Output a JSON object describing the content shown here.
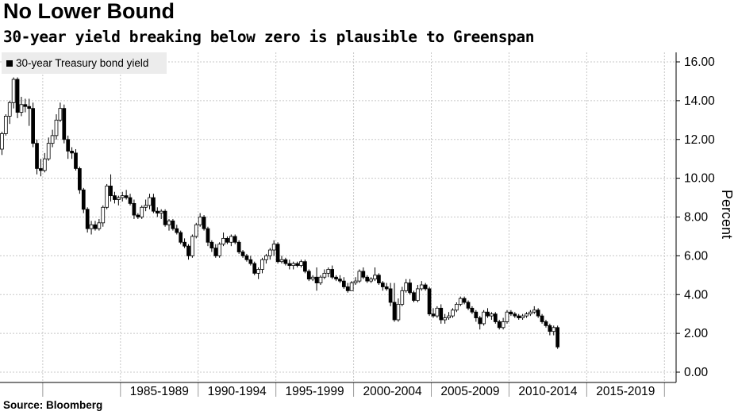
{
  "header": {
    "title": "No Lower Bound",
    "subtitle": "30-year yield breaking below zero is plausible to Greenspan"
  },
  "footer": {
    "source": "Source: Bloomberg"
  },
  "chart_data": {
    "type": "candlestick",
    "title": "No Lower Bound",
    "subtitle": "30-year yield breaking below zero is plausible to Greenspan",
    "ylabel": "Percent",
    "xlabel": "",
    "legend": {
      "entries": [
        "30-year Treasury bond yield"
      ],
      "placement": "top-left"
    },
    "colors": {
      "up": "#ffffff",
      "down": "#000000",
      "outline": "#000000",
      "grid": "#c8c8c8"
    },
    "grid": true,
    "y_axis": {
      "position": "right",
      "ylim": [
        0,
        16.5
      ],
      "ticks": [
        0,
        2,
        4,
        6,
        8,
        10,
        12,
        14,
        16
      ],
      "tick_labels": [
        "0.00",
        "2.00",
        "4.00",
        "6.00",
        "8.00",
        "10.00",
        "12.00",
        "14.00",
        "16.00"
      ]
    },
    "x_axis": {
      "xlim": [
        1977.25,
        2020.75
      ],
      "period_labels": [
        "1985-1989",
        "1990-1994",
        "1995-1999",
        "2000-2004",
        "2005-2009",
        "2010-2014",
        "2015-2019"
      ]
    },
    "quarterly_ohlc": {
      "start": "1977-Q2",
      "frequency": "quarterly",
      "columns": [
        "open",
        "high",
        "low",
        "close"
      ],
      "values": [
        [
          11.5,
          12.4,
          11.2,
          12.3
        ],
        [
          12.3,
          13.3,
          12.2,
          13.2
        ],
        [
          13.2,
          14.0,
          12.8,
          13.9
        ],
        [
          13.9,
          15.2,
          13.6,
          15.1
        ],
        [
          15.1,
          15.2,
          13.1,
          13.4
        ],
        [
          13.4,
          14.2,
          13.2,
          13.8
        ],
        [
          13.8,
          14.1,
          13.4,
          13.7
        ],
        [
          13.7,
          14.1,
          12.7,
          13.6
        ],
        [
          13.6,
          13.9,
          11.6,
          11.8
        ],
        [
          11.8,
          12.0,
          10.2,
          10.5
        ],
        [
          10.5,
          11.0,
          10.1,
          10.4
        ],
        [
          10.4,
          11.3,
          10.3,
          11.0
        ],
        [
          11.0,
          12.1,
          10.9,
          11.8
        ],
        [
          11.8,
          12.5,
          11.6,
          12.2
        ],
        [
          12.2,
          13.3,
          12.0,
          13.0
        ],
        [
          13.0,
          13.9,
          12.9,
          13.6
        ],
        [
          13.6,
          13.8,
          11.8,
          12.0
        ],
        [
          12.0,
          12.2,
          11.0,
          11.4
        ],
        [
          11.4,
          11.6,
          11.0,
          11.3
        ],
        [
          11.3,
          11.5,
          10.4,
          10.5
        ],
        [
          10.5,
          10.6,
          9.2,
          9.4
        ],
        [
          9.4,
          9.5,
          8.2,
          8.4
        ],
        [
          8.4,
          8.5,
          7.2,
          7.4
        ],
        [
          7.4,
          7.8,
          7.1,
          7.6
        ],
        [
          7.6,
          7.8,
          7.3,
          7.4
        ],
        [
          7.4,
          7.9,
          7.3,
          7.7
        ],
        [
          7.7,
          8.6,
          7.5,
          8.5
        ],
        [
          8.5,
          9.7,
          8.4,
          9.6
        ],
        [
          9.6,
          10.2,
          8.8,
          9.1
        ],
        [
          9.1,
          9.3,
          8.7,
          8.9
        ],
        [
          8.9,
          9.1,
          8.6,
          9.0
        ],
        [
          9.0,
          9.3,
          8.8,
          9.1
        ],
        [
          9.1,
          9.4,
          8.9,
          9.0
        ],
        [
          9.0,
          9.2,
          8.6,
          8.7
        ],
        [
          8.7,
          8.9,
          7.9,
          8.1
        ],
        [
          8.1,
          8.2,
          7.9,
          8.0
        ],
        [
          8.0,
          8.6,
          7.9,
          8.5
        ],
        [
          8.5,
          8.9,
          8.3,
          8.6
        ],
        [
          8.6,
          9.2,
          8.4,
          9.0
        ],
        [
          9.0,
          9.2,
          8.2,
          8.3
        ],
        [
          8.3,
          8.5,
          8.0,
          8.2
        ],
        [
          8.2,
          8.4,
          7.9,
          8.3
        ],
        [
          8.3,
          8.4,
          7.5,
          7.6
        ],
        [
          7.6,
          7.9,
          7.3,
          7.8
        ],
        [
          7.8,
          7.9,
          7.3,
          7.4
        ],
        [
          7.4,
          7.6,
          7.1,
          7.2
        ],
        [
          7.2,
          7.3,
          6.6,
          6.7
        ],
        [
          6.7,
          6.9,
          6.4,
          6.5
        ],
        [
          6.5,
          6.6,
          5.8,
          6.0
        ],
        [
          6.0,
          7.1,
          5.9,
          7.0
        ],
        [
          7.0,
          7.7,
          6.9,
          7.6
        ],
        [
          7.6,
          8.2,
          7.5,
          8.0
        ],
        [
          8.0,
          8.1,
          7.3,
          7.4
        ],
        [
          7.4,
          7.5,
          6.5,
          6.7
        ],
        [
          6.7,
          6.8,
          6.2,
          6.4
        ],
        [
          6.4,
          6.6,
          5.9,
          6.0
        ],
        [
          6.0,
          6.7,
          5.9,
          6.6
        ],
        [
          6.6,
          7.2,
          6.5,
          6.9
        ],
        [
          6.9,
          7.0,
          6.6,
          6.7
        ],
        [
          6.7,
          7.1,
          6.5,
          7.0
        ],
        [
          7.0,
          7.1,
          6.6,
          6.7
        ],
        [
          6.7,
          6.8,
          6.1,
          6.2
        ],
        [
          6.2,
          6.3,
          5.9,
          6.0
        ],
        [
          6.0,
          6.1,
          5.7,
          5.8
        ],
        [
          5.8,
          6.0,
          5.5,
          5.6
        ],
        [
          5.6,
          5.7,
          5.0,
          5.1
        ],
        [
          5.1,
          5.4,
          4.8,
          5.3
        ],
        [
          5.3,
          5.9,
          5.1,
          5.8
        ],
        [
          5.8,
          6.1,
          5.6,
          6.0
        ],
        [
          6.0,
          6.4,
          5.8,
          6.3
        ],
        [
          6.3,
          6.8,
          6.0,
          6.6
        ],
        [
          6.6,
          6.7,
          5.6,
          5.7
        ],
        [
          5.7,
          6.0,
          5.6,
          5.8
        ],
        [
          5.8,
          5.9,
          5.5,
          5.6
        ],
        [
          5.6,
          5.8,
          5.3,
          5.5
        ],
        [
          5.5,
          5.7,
          5.3,
          5.6
        ],
        [
          5.6,
          5.7,
          5.4,
          5.5
        ],
        [
          5.5,
          5.8,
          5.4,
          5.7
        ],
        [
          5.7,
          5.8,
          5.1,
          5.2
        ],
        [
          5.2,
          5.3,
          4.7,
          4.8
        ],
        [
          4.8,
          5.0,
          4.7,
          4.9
        ],
        [
          4.9,
          5.4,
          4.2,
          4.6
        ],
        [
          4.6,
          5.0,
          4.5,
          4.9
        ],
        [
          4.9,
          5.3,
          4.8,
          5.1
        ],
        [
          5.1,
          5.4,
          4.9,
          5.3
        ],
        [
          5.3,
          5.5,
          4.8,
          4.9
        ],
        [
          4.9,
          5.0,
          4.7,
          4.8
        ],
        [
          4.8,
          5.0,
          4.6,
          4.7
        ],
        [
          4.7,
          4.9,
          4.3,
          4.4
        ],
        [
          4.4,
          4.6,
          4.1,
          4.2
        ],
        [
          4.2,
          4.7,
          4.2,
          4.6
        ],
        [
          4.6,
          4.9,
          4.5,
          4.7
        ],
        [
          4.7,
          5.3,
          4.6,
          5.2
        ],
        [
          5.2,
          5.4,
          4.8,
          4.9
        ],
        [
          4.9,
          5.0,
          4.6,
          4.7
        ],
        [
          4.7,
          4.9,
          4.6,
          4.8
        ],
        [
          4.8,
          5.4,
          4.7,
          5.0
        ],
        [
          5.0,
          5.1,
          4.5,
          4.6
        ],
        [
          4.6,
          4.7,
          4.2,
          4.4
        ],
        [
          4.4,
          4.6,
          4.2,
          4.3
        ],
        [
          4.3,
          4.6,
          3.4,
          3.6
        ],
        [
          3.6,
          4.6,
          2.6,
          2.7
        ],
        [
          2.7,
          3.8,
          2.6,
          3.5
        ],
        [
          3.5,
          4.4,
          3.4,
          4.2
        ],
        [
          4.2,
          4.8,
          4.1,
          4.6
        ],
        [
          4.6,
          4.8,
          4.0,
          4.1
        ],
        [
          4.1,
          4.2,
          3.6,
          3.7
        ],
        [
          3.7,
          4.5,
          3.6,
          4.3
        ],
        [
          4.3,
          4.7,
          4.2,
          4.5
        ],
        [
          4.5,
          4.6,
          4.2,
          4.3
        ],
        [
          4.3,
          4.4,
          2.9,
          3.0
        ],
        [
          3.0,
          3.3,
          2.8,
          2.9
        ],
        [
          2.9,
          3.4,
          2.8,
          3.3
        ],
        [
          3.3,
          3.5,
          2.5,
          2.7
        ],
        [
          2.7,
          3.0,
          2.5,
          2.8
        ],
        [
          2.8,
          3.1,
          2.7,
          2.9
        ],
        [
          2.9,
          3.3,
          2.8,
          3.2
        ],
        [
          3.2,
          3.6,
          3.1,
          3.5
        ],
        [
          3.5,
          3.9,
          3.4,
          3.8
        ],
        [
          3.8,
          3.9,
          3.5,
          3.6
        ],
        [
          3.6,
          3.7,
          3.2,
          3.3
        ],
        [
          3.3,
          3.4,
          3.0,
          3.1
        ],
        [
          3.1,
          3.2,
          2.6,
          2.8
        ],
        [
          2.8,
          2.9,
          2.2,
          2.5
        ],
        [
          2.5,
          3.2,
          2.4,
          3.1
        ],
        [
          3.1,
          3.3,
          2.8,
          2.9
        ],
        [
          2.9,
          3.1,
          2.7,
          3.0
        ],
        [
          3.0,
          3.1,
          2.5,
          2.6
        ],
        [
          2.6,
          2.7,
          2.2,
          2.3
        ],
        [
          2.3,
          2.8,
          2.2,
          2.6
        ],
        [
          2.6,
          3.2,
          2.5,
          3.1
        ],
        [
          3.1,
          3.2,
          2.9,
          3.0
        ],
        [
          3.0,
          3.1,
          2.8,
          2.9
        ],
        [
          2.9,
          3.0,
          2.7,
          2.8
        ],
        [
          2.8,
          3.0,
          2.7,
          2.9
        ],
        [
          2.9,
          3.1,
          2.8,
          3.0
        ],
        [
          3.0,
          3.2,
          2.9,
          3.1
        ],
        [
          3.1,
          3.4,
          3.0,
          3.2
        ],
        [
          3.2,
          3.3,
          2.8,
          2.9
        ],
        [
          2.9,
          3.0,
          2.5,
          2.6
        ],
        [
          2.6,
          2.7,
          2.3,
          2.4
        ],
        [
          2.4,
          2.5,
          1.9,
          2.1
        ],
        [
          2.1,
          2.4,
          1.9,
          2.3
        ],
        [
          2.3,
          2.4,
          1.2,
          1.3
        ]
      ]
    }
  }
}
